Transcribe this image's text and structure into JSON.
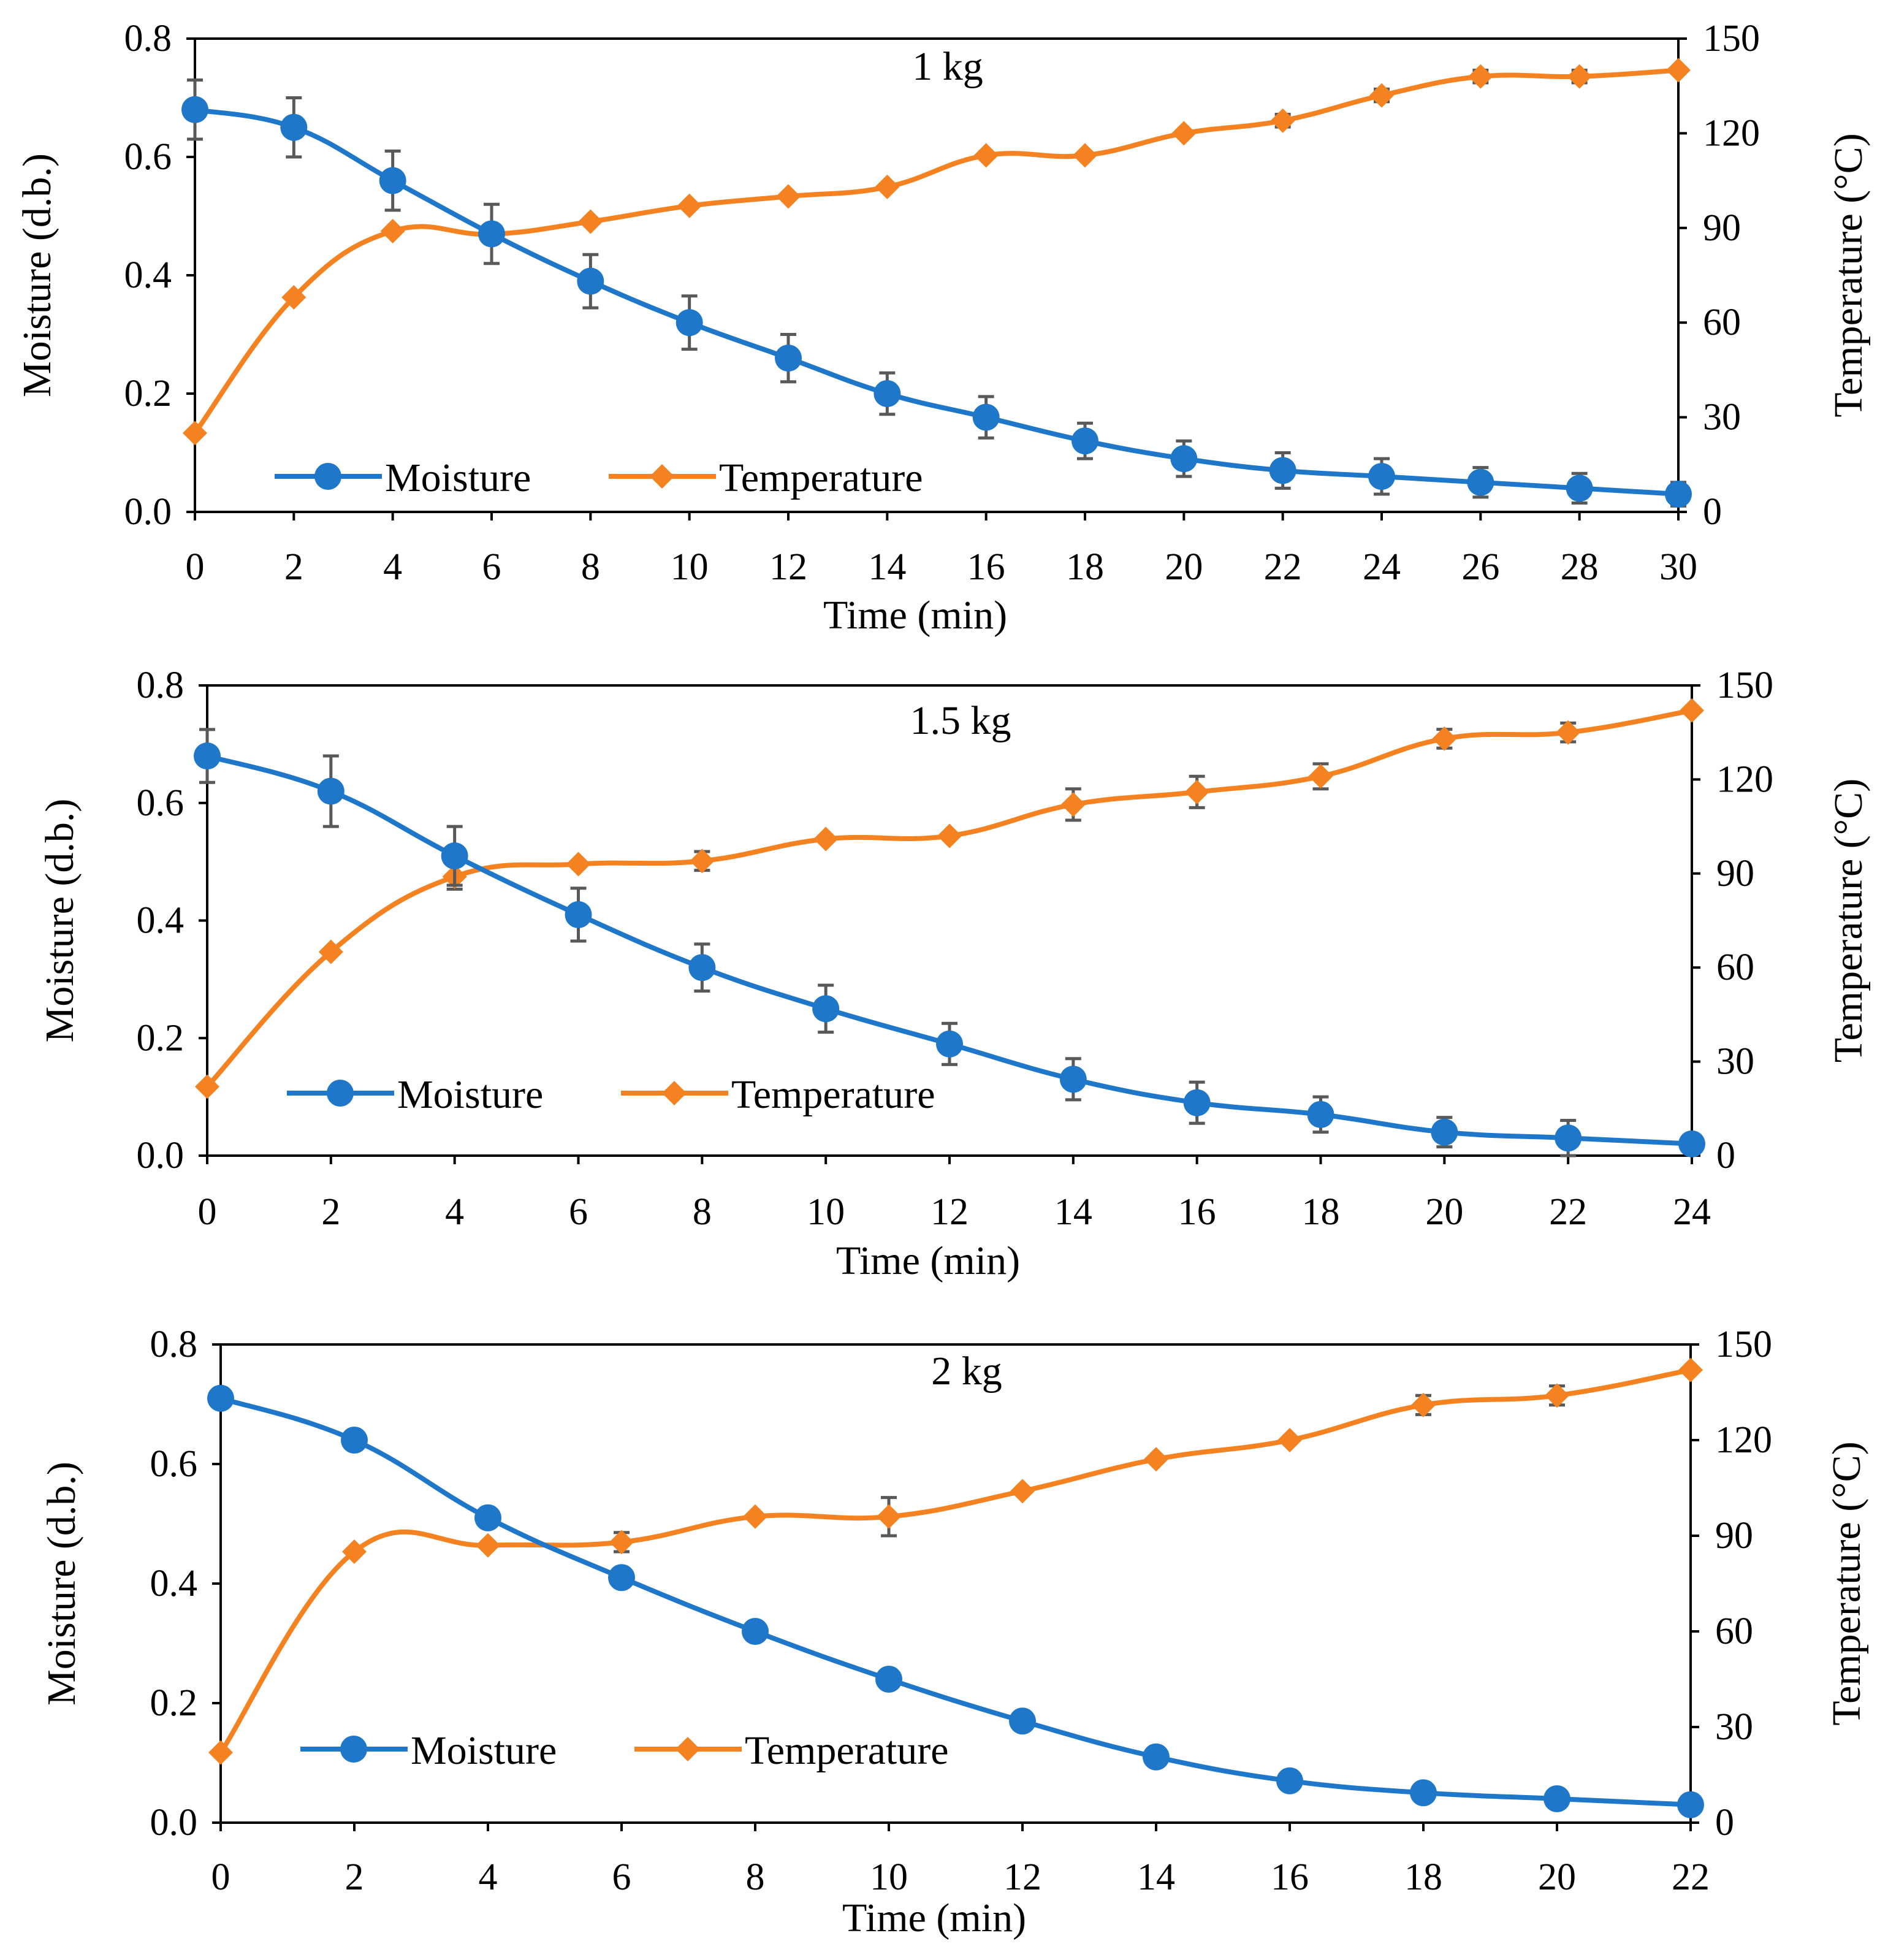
{
  "colors": {
    "moisture": "#1f77c9",
    "temperature": "#f58220",
    "axis": "#000000",
    "errorbar": "#595959"
  },
  "chart_data": [
    {
      "type": "line",
      "title": "1 kg",
      "xlabel": "Time (min)",
      "ylabel": "Moisture (d.b.)",
      "y2label": "Temperature (°C)",
      "xlim": [
        0,
        30
      ],
      "ylim": [
        0,
        0.8
      ],
      "y2lim": [
        0,
        150
      ],
      "xticks": [
        "0",
        "2",
        "4",
        "6",
        "8",
        "10",
        "12",
        "14",
        "16",
        "18",
        "20",
        "22",
        "24",
        "26",
        "28",
        "30"
      ],
      "yticks": [
        "0.0",
        "0.2",
        "0.4",
        "0.6",
        "0.8"
      ],
      "y2ticks": [
        "0",
        "30",
        "60",
        "90",
        "120",
        "150"
      ],
      "legend": {
        "position": "bottom-left",
        "entries": [
          "Moisture",
          "Temperature"
        ]
      },
      "series": [
        {
          "name": "Moisture",
          "axis": "left",
          "marker": "circle",
          "x": [
            0,
            2,
            4,
            6,
            8,
            10,
            12,
            14,
            16,
            18,
            20,
            22,
            24,
            26,
            28,
            30
          ],
          "values": [
            0.68,
            0.65,
            0.56,
            0.47,
            0.39,
            0.32,
            0.26,
            0.2,
            0.16,
            0.12,
            0.09,
            0.07,
            0.06,
            0.05,
            0.04,
            0.03
          ],
          "errors": [
            0.05,
            0.05,
            0.05,
            0.05,
            0.045,
            0.045,
            0.04,
            0.035,
            0.035,
            0.03,
            0.03,
            0.03,
            0.03,
            0.025,
            0.025,
            0.02
          ]
        },
        {
          "name": "Temperature",
          "axis": "right",
          "marker": "diamond",
          "x": [
            0,
            2,
            4,
            6,
            8,
            10,
            12,
            14,
            16,
            18,
            20,
            22,
            24,
            26,
            28,
            30
          ],
          "values": [
            25,
            68,
            89,
            88,
            92,
            97,
            100,
            103,
            113,
            113,
            120,
            124,
            132,
            138,
            138,
            140
          ],
          "errors": [
            0,
            0,
            0,
            0,
            0,
            0,
            0,
            0,
            0,
            0,
            0,
            2,
            2,
            2,
            2,
            0
          ]
        }
      ]
    },
    {
      "type": "line",
      "title": "1.5 kg",
      "xlabel": "Time (min)",
      "ylabel": "Moisture (d.b.)",
      "y2label": "Temperature (°C)",
      "xlim": [
        0,
        24
      ],
      "ylim": [
        0,
        0.8
      ],
      "y2lim": [
        0,
        150
      ],
      "xticks": [
        "0",
        "2",
        "4",
        "6",
        "8",
        "10",
        "12",
        "14",
        "16",
        "18",
        "20",
        "22",
        "24"
      ],
      "yticks": [
        "0.0",
        "0.2",
        "0.4",
        "0.6",
        "0.8"
      ],
      "y2ticks": [
        "0",
        "30",
        "60",
        "90",
        "120",
        "150"
      ],
      "legend": {
        "position": "bottom-left",
        "entries": [
          "Moisture",
          "Temperature"
        ]
      },
      "series": [
        {
          "name": "Moisture",
          "axis": "left",
          "marker": "circle",
          "x": [
            0,
            2,
            4,
            6,
            8,
            10,
            12,
            14,
            16,
            18,
            20,
            22,
            24
          ],
          "values": [
            0.68,
            0.62,
            0.51,
            0.41,
            0.32,
            0.25,
            0.19,
            0.13,
            0.09,
            0.07,
            0.04,
            0.03,
            0.02
          ],
          "errors": [
            0.045,
            0.06,
            0.05,
            0.045,
            0.04,
            0.04,
            0.035,
            0.035,
            0.035,
            0.03,
            0.025,
            0.03,
            0.0
          ]
        },
        {
          "name": "Temperature",
          "axis": "right",
          "marker": "diamond",
          "x": [
            0,
            2,
            4,
            6,
            8,
            10,
            12,
            14,
            16,
            18,
            20,
            22,
            24
          ],
          "values": [
            22,
            65,
            89,
            93,
            94,
            101,
            102,
            112,
            116,
            121,
            133,
            135,
            142
          ],
          "errors": [
            0,
            0,
            4,
            0,
            3,
            0,
            0,
            5,
            5,
            4,
            3,
            3,
            0
          ]
        }
      ]
    },
    {
      "type": "line",
      "title": "2 kg",
      "xlabel": "Time (min)",
      "ylabel": "Moisture (d.b.)",
      "y2label": "Temperature (°C)",
      "xlim": [
        0,
        22
      ],
      "ylim": [
        0,
        0.8
      ],
      "y2lim": [
        0,
        150
      ],
      "xticks": [
        "0",
        "2",
        "4",
        "6",
        "8",
        "10",
        "12",
        "14",
        "16",
        "18",
        "20",
        "22"
      ],
      "yticks": [
        "0.0",
        "0.2",
        "0.4",
        "0.6",
        "0.8"
      ],
      "y2ticks": [
        "0",
        "30",
        "60",
        "90",
        "120",
        "150"
      ],
      "legend": {
        "position": "bottom-left",
        "entries": [
          "Moisture",
          "Temperature"
        ]
      },
      "series": [
        {
          "name": "Moisture",
          "axis": "left",
          "marker": "circle",
          "x": [
            0,
            2,
            4,
            6,
            8,
            10,
            12,
            14,
            16,
            18,
            20,
            22
          ],
          "values": [
            0.71,
            0.64,
            0.51,
            0.41,
            0.32,
            0.24,
            0.17,
            0.11,
            0.07,
            0.05,
            0.04,
            0.03
          ],
          "errors": [
            0,
            0,
            0,
            0,
            0,
            0,
            0,
            0,
            0,
            0,
            0,
            0
          ]
        },
        {
          "name": "Temperature",
          "axis": "right",
          "marker": "diamond",
          "x": [
            0,
            2,
            4,
            6,
            8,
            10,
            12,
            14,
            16,
            18,
            20,
            22
          ],
          "values": [
            22,
            85,
            87,
            88,
            96,
            96,
            104,
            114,
            120,
            131,
            134,
            142
          ],
          "errors": [
            0,
            0,
            0,
            3,
            0,
            6,
            0,
            0,
            0,
            3,
            3,
            0
          ]
        }
      ]
    }
  ]
}
